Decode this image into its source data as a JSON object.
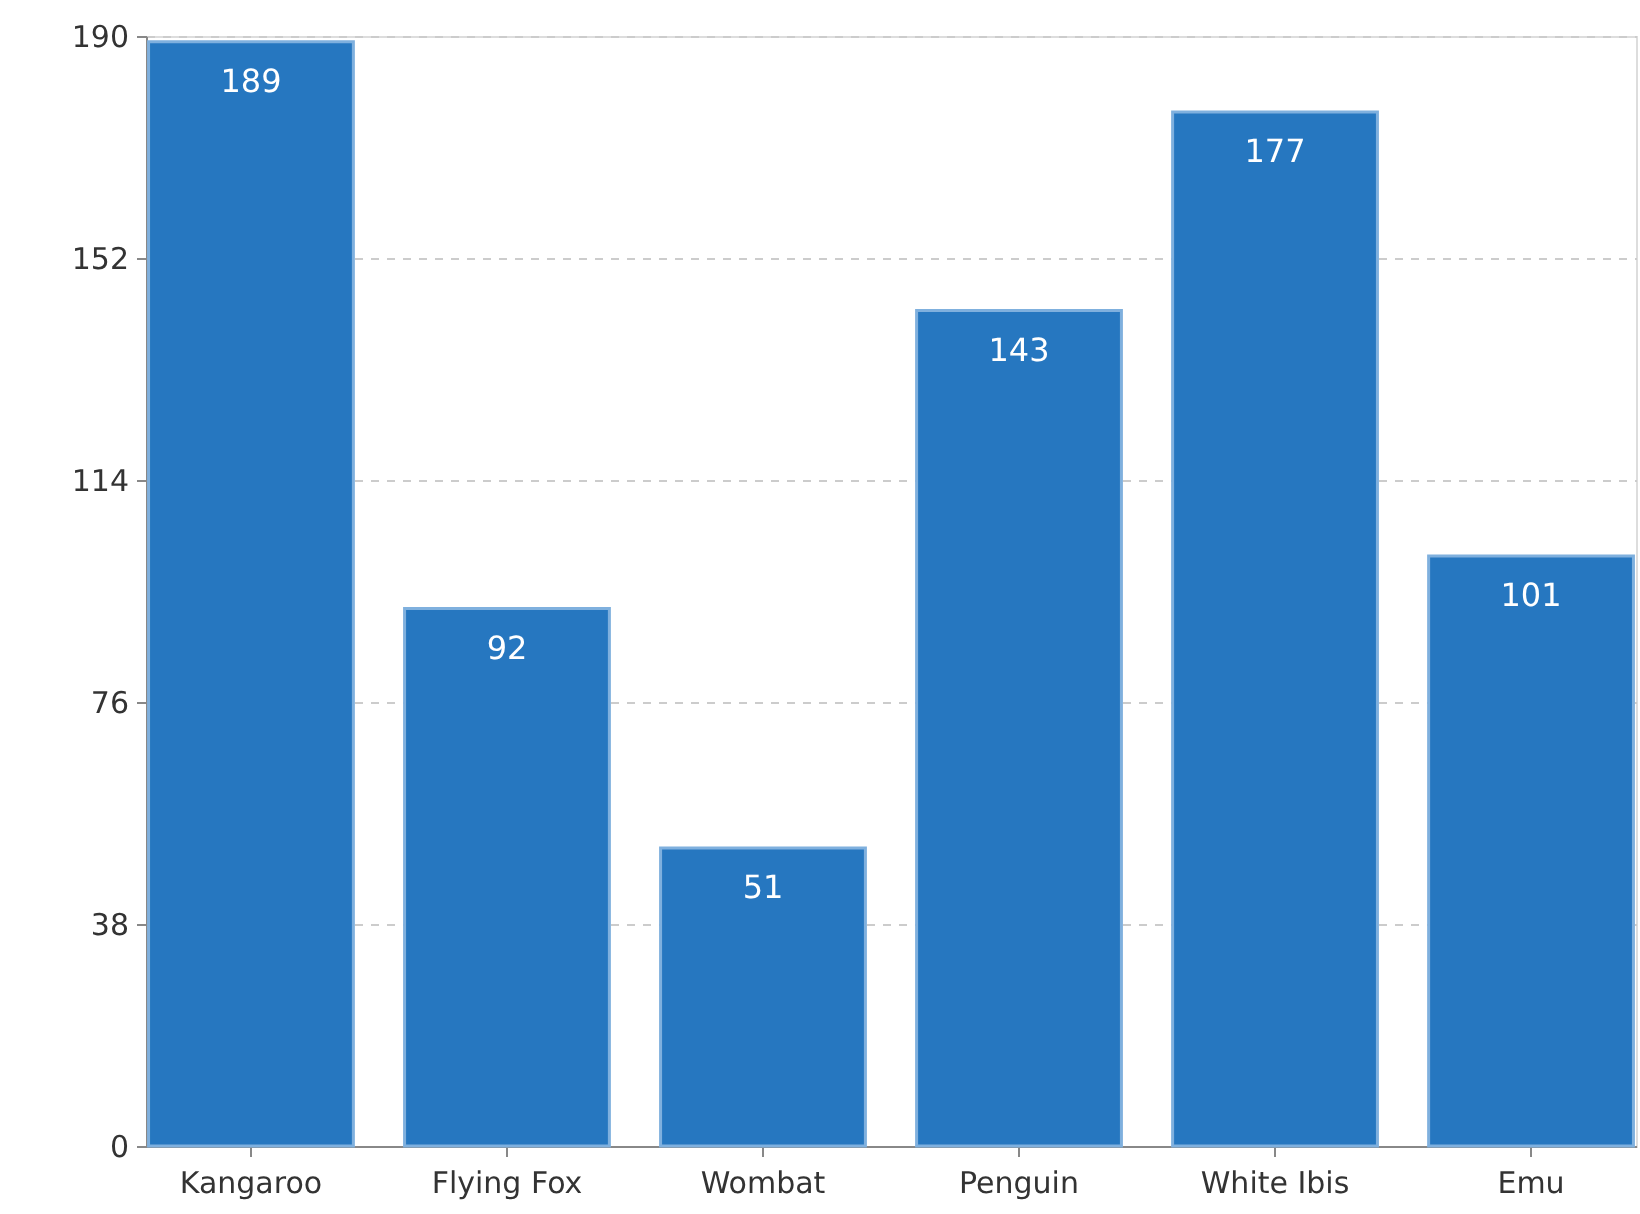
{
  "chart_data": {
    "type": "bar",
    "categories": [
      "Kangaroo",
      "Flying Fox",
      "Wombat",
      "Penguin",
      "White Ibis",
      "Emu"
    ],
    "values": [
      189,
      92,
      51,
      143,
      177,
      101
    ],
    "color": "#2677c0",
    "ylim": [
      0,
      190
    ],
    "yticks": [
      0,
      38,
      76,
      114,
      152,
      190
    ],
    "grid": "y",
    "data_labels": true
  }
}
